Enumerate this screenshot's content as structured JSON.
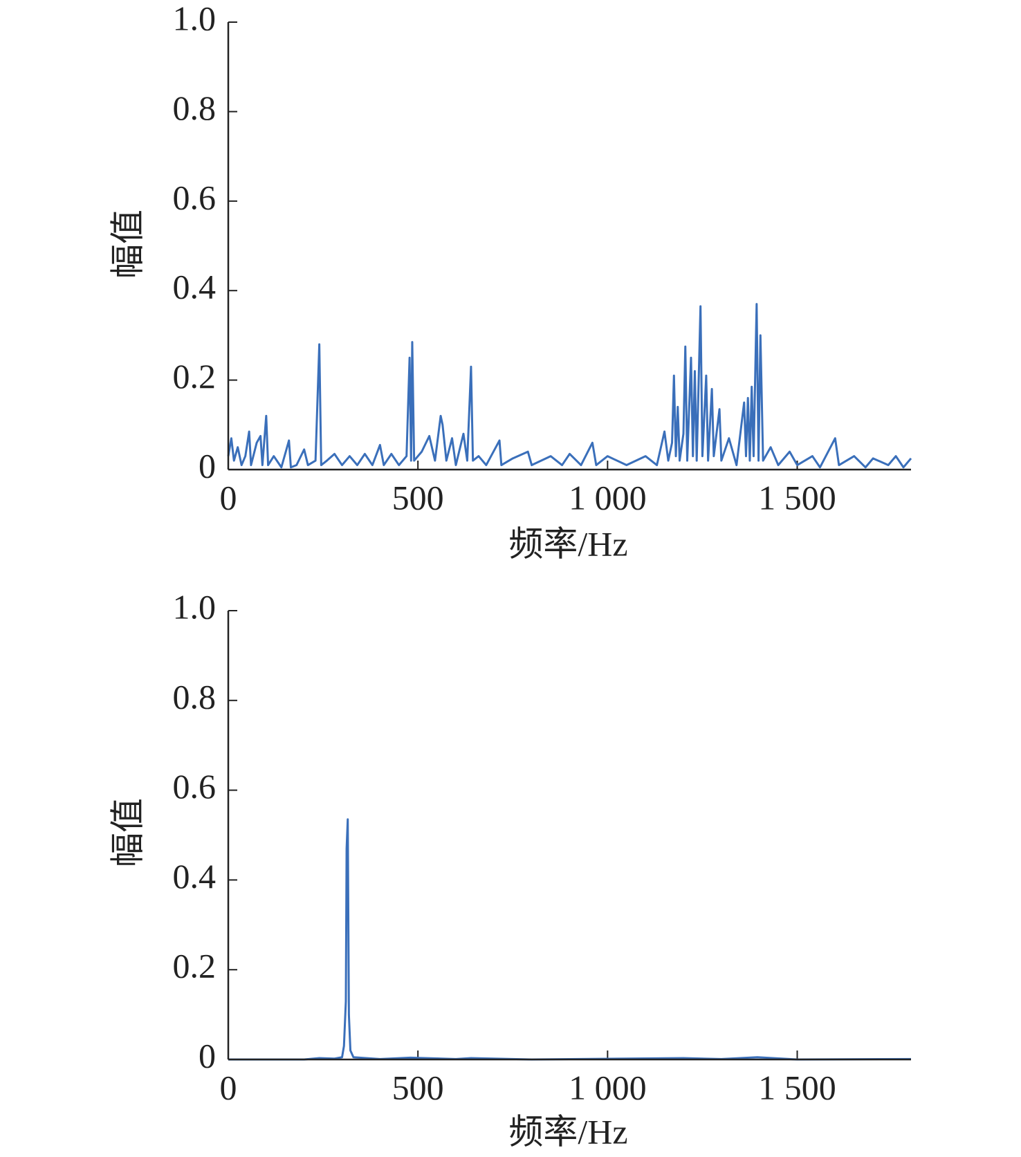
{
  "chart_data": [
    {
      "type": "line",
      "x_label": "频率/Hz",
      "y_label": "幅值",
      "color": "#3a6fba",
      "xlim": [
        0,
        1800
      ],
      "ylim": [
        0,
        1
      ],
      "xticks": [
        0,
        500,
        {
          "value": 1000,
          "label": "1 000"
        },
        {
          "value": 1500,
          "label": "1 500"
        }
      ],
      "yticks": [
        0,
        0.2,
        0.4,
        0.6,
        0.8,
        {
          "value": 1,
          "label": "1.0"
        }
      ],
      "x": [
        0,
        8,
        15,
        25,
        35,
        45,
        55,
        60,
        75,
        85,
        90,
        100,
        105,
        120,
        140,
        160,
        165,
        180,
        200,
        210,
        230,
        240,
        245,
        260,
        280,
        300,
        320,
        340,
        360,
        380,
        400,
        410,
        430,
        450,
        470,
        478,
        482,
        485,
        490,
        510,
        530,
        545,
        560,
        565,
        575,
        590,
        600,
        620,
        630,
        640,
        645,
        660,
        680,
        715,
        720,
        750,
        790,
        800,
        850,
        880,
        900,
        930,
        960,
        970,
        1000,
        1050,
        1100,
        1130,
        1150,
        1160,
        1170,
        1175,
        1180,
        1185,
        1190,
        1200,
        1205,
        1210,
        1220,
        1225,
        1230,
        1235,
        1245,
        1250,
        1260,
        1265,
        1275,
        1280,
        1290,
        1295,
        1300,
        1320,
        1340,
        1360,
        1365,
        1370,
        1375,
        1380,
        1385,
        1393,
        1398,
        1403,
        1410,
        1430,
        1450,
        1480,
        1500,
        1540,
        1560,
        1600,
        1610,
        1650,
        1680,
        1700,
        1740,
        1760,
        1780,
        1800
      ],
      "values": [
        0.03,
        0.07,
        0.02,
        0.05,
        0.01,
        0.03,
        0.085,
        0.01,
        0.06,
        0.075,
        0.01,
        0.12,
        0.01,
        0.03,
        0.005,
        0.065,
        0.005,
        0.01,
        0.045,
        0.01,
        0.02,
        0.28,
        0.01,
        0.02,
        0.035,
        0.01,
        0.03,
        0.01,
        0.035,
        0.01,
        0.055,
        0.01,
        0.035,
        0.01,
        0.03,
        0.25,
        0.02,
        0.285,
        0.02,
        0.04,
        0.075,
        0.02,
        0.12,
        0.1,
        0.02,
        0.07,
        0.01,
        0.08,
        0.02,
        0.23,
        0.02,
        0.03,
        0.01,
        0.065,
        0.01,
        0.025,
        0.04,
        0.01,
        0.03,
        0.01,
        0.035,
        0.01,
        0.06,
        0.01,
        0.03,
        0.01,
        0.03,
        0.01,
        0.085,
        0.02,
        0.06,
        0.21,
        0.03,
        0.14,
        0.02,
        0.08,
        0.275,
        0.02,
        0.25,
        0.03,
        0.22,
        0.02,
        0.365,
        0.03,
        0.21,
        0.02,
        0.18,
        0.03,
        0.1,
        0.135,
        0.02,
        0.07,
        0.01,
        0.15,
        0.03,
        0.16,
        0.02,
        0.185,
        0.03,
        0.37,
        0.02,
        0.3,
        0.02,
        0.05,
        0.01,
        0.04,
        0.01,
        0.03,
        0.005,
        0.07,
        0.01,
        0.03,
        0.005,
        0.025,
        0.01,
        0.03,
        0.005,
        0.025
      ]
    },
    {
      "type": "line",
      "x_label": "频率/Hz",
      "y_label": "幅值",
      "color": "#3a6fba",
      "xlim": [
        0,
        1800
      ],
      "ylim": [
        0,
        1
      ],
      "xticks": [
        0,
        500,
        {
          "value": 1000,
          "label": "1 000"
        },
        {
          "value": 1500,
          "label": "1 500"
        }
      ],
      "yticks": [
        0,
        0.2,
        0.4,
        0.6,
        0.8,
        {
          "value": 1,
          "label": "1.0"
        }
      ],
      "x": [
        0,
        200,
        240,
        280,
        300,
        305,
        310,
        312,
        315,
        318,
        322,
        330,
        400,
        480,
        600,
        640,
        800,
        1200,
        1300,
        1395,
        1500,
        1800
      ],
      "values": [
        0,
        0,
        0.003,
        0.002,
        0.005,
        0.03,
        0.13,
        0.47,
        0.535,
        0.1,
        0.02,
        0.005,
        0.001,
        0.004,
        0.001,
        0.003,
        0,
        0.003,
        0.001,
        0.005,
        0,
        0.001
      ]
    }
  ]
}
